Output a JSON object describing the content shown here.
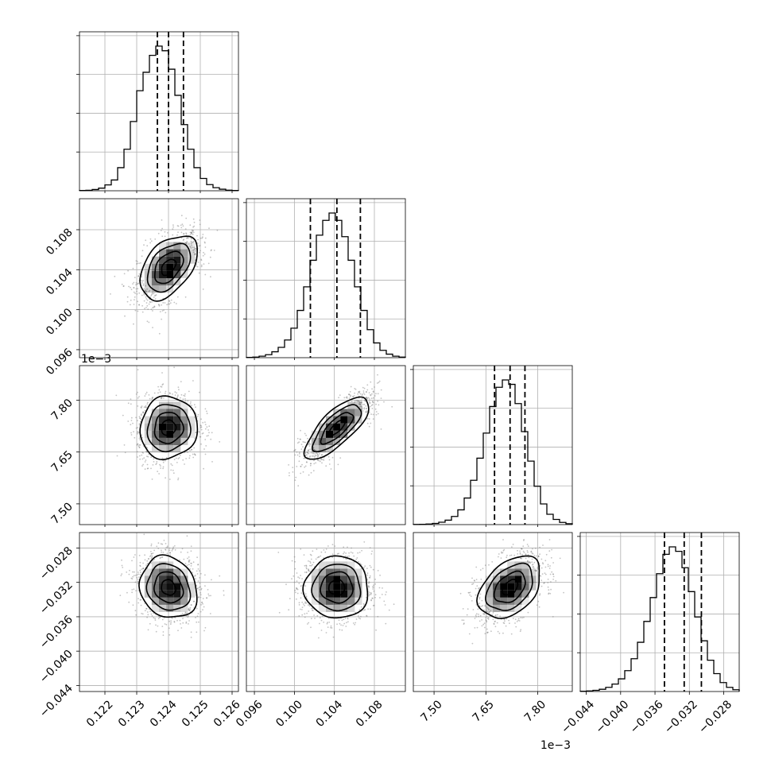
{
  "chart_data": {
    "type": "corner",
    "parameters": [
      {
        "key": "p0",
        "range": [
          0.1212,
          0.1262
        ],
        "center": 0.124,
        "sigma": 0.00045,
        "ticks": [
          0.122,
          0.123,
          0.124,
          0.125,
          0.126
        ],
        "tick_labels": [
          "0.122",
          "0.123",
          "0.124",
          "0.125",
          "0.126"
        ],
        "offset_label": "",
        "quantiles": [
          0.12365,
          0.124,
          0.12447
        ],
        "hist": [
          0.002,
          0.003,
          0.008,
          0.017,
          0.038,
          0.07,
          0.15,
          0.27,
          0.45,
          0.65,
          0.77,
          0.88,
          0.94,
          0.91,
          0.79,
          0.62,
          0.43,
          0.27,
          0.15,
          0.08,
          0.04,
          0.02,
          0.01,
          0.004,
          0.002
        ]
      },
      {
        "key": "p1",
        "range": [
          0.0952,
          0.1111
        ],
        "center": 0.10425,
        "sigma": 0.0016,
        "ticks": [
          0.096,
          0.1,
          0.104,
          0.108
        ],
        "tick_labels": [
          "0.096",
          "0.100",
          "0.104",
          "0.108"
        ],
        "offset_label": "",
        "quantiles": [
          0.1016,
          0.10425,
          0.1066
        ],
        "hist": [
          0.002,
          0.004,
          0.01,
          0.02,
          0.04,
          0.07,
          0.12,
          0.2,
          0.32,
          0.48,
          0.66,
          0.83,
          0.93,
          0.98,
          0.93,
          0.82,
          0.66,
          0.48,
          0.32,
          0.19,
          0.1,
          0.05,
          0.024,
          0.01,
          0.004
        ]
      },
      {
        "key": "p2",
        "range": [
          7.44,
          7.9
        ],
        "center": 7.72,
        "sigma": 0.045,
        "ticks": [
          7.5,
          7.65,
          7.8
        ],
        "tick_labels": [
          "7.50",
          "7.65",
          "7.80"
        ],
        "offset_label": "1e−3",
        "quantiles": [
          7.675,
          7.72,
          7.763
        ],
        "hist": [
          0.001,
          0.002,
          0.004,
          0.008,
          0.016,
          0.03,
          0.055,
          0.1,
          0.18,
          0.3,
          0.45,
          0.62,
          0.8,
          0.93,
          0.98,
          0.95,
          0.82,
          0.63,
          0.43,
          0.26,
          0.14,
          0.07,
          0.035,
          0.015,
          0.006
        ]
      },
      {
        "key": "p3",
        "range": [
          -0.0447,
          -0.0262
        ],
        "center": -0.0326,
        "sigma": 0.0018,
        "ticks": [
          -0.044,
          -0.04,
          -0.036,
          -0.032,
          -0.028
        ],
        "tick_labels": [
          "−0.044",
          "−0.040",
          "−0.036",
          "−0.032",
          "−0.028"
        ],
        "offset_label": "",
        "quantiles": [
          -0.0349,
          -0.0326,
          -0.0306
        ],
        "hist": [
          0.002,
          0.004,
          0.008,
          0.015,
          0.028,
          0.05,
          0.085,
          0.14,
          0.22,
          0.33,
          0.47,
          0.63,
          0.79,
          0.92,
          0.97,
          0.94,
          0.83,
          0.67,
          0.5,
          0.34,
          0.21,
          0.12,
          0.06,
          0.028,
          0.012
        ]
      }
    ],
    "correlations": {
      "1_0": 0.45,
      "2_0": 0.05,
      "2_1": 0.75,
      "3_0": -0.15,
      "3_1": 0.0,
      "3_2": 0.4
    },
    "contour_levels": [
      0.5,
      1.0,
      1.5,
      2.0
    ],
    "grid": true,
    "colors": {
      "line": "#000000",
      "grid": "#b0b0b0",
      "density": "#000000",
      "scatter": "#7a7a7a"
    }
  }
}
